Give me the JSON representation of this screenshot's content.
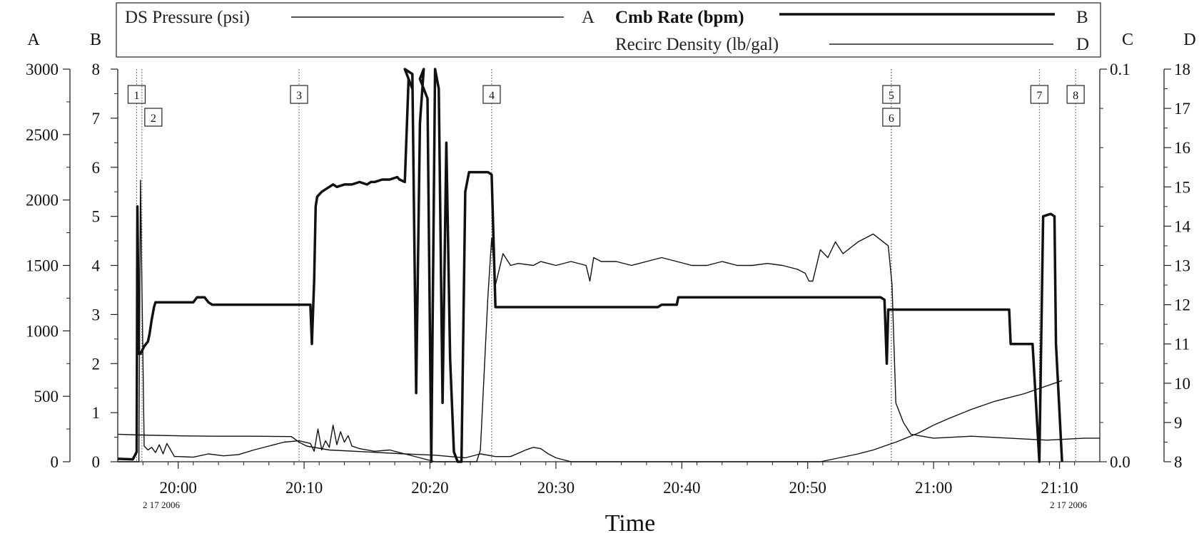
{
  "legend": {
    "pressure": {
      "name": "DS Pressure (psi)",
      "axis": "A"
    },
    "rate": {
      "name": "Cmb Rate (bpm)",
      "axis": "B"
    },
    "density": {
      "name": "Recirc Density (lb/gal)",
      "axis": "D"
    }
  },
  "axis_letters": {
    "a": "A",
    "b": "B",
    "c": "C",
    "d": "D"
  },
  "x_axis_title": "Time",
  "date_labels": [
    "2 17 2006",
    "2 17 2006"
  ],
  "chart_data": {
    "type": "line",
    "xlabel": "Time",
    "xlim": [
      19.92,
      21.22
    ],
    "x_ticks": [
      {
        "x": 20.0,
        "label": "20:00"
      },
      {
        "x": 20.1667,
        "label": "20:10"
      },
      {
        "x": 20.3333,
        "label": "20:20"
      },
      {
        "x": 20.5,
        "label": "20:30"
      },
      {
        "x": 20.6667,
        "label": "20:40"
      },
      {
        "x": 20.8333,
        "label": "20:50"
      },
      {
        "x": 21.0,
        "label": "21:00"
      },
      {
        "x": 21.1667,
        "label": "21:10"
      }
    ],
    "axes": {
      "A": {
        "range": [
          0,
          3000
        ],
        "ticks": [
          "0",
          "500",
          "1000",
          "1500",
          "2000",
          "2500",
          "3000"
        ]
      },
      "B": {
        "range": [
          0,
          8
        ],
        "ticks": [
          "0",
          "1",
          "2",
          "3",
          "4",
          "5",
          "6",
          "7",
          "8"
        ]
      },
      "C": {
        "range": [
          0.0,
          0.1
        ],
        "ticks": [
          "0.0",
          "0.1"
        ]
      },
      "D": {
        "range": [
          8,
          18
        ],
        "ticks": [
          "8",
          "9",
          "10",
          "11",
          "12",
          "13",
          "14",
          "15",
          "16",
          "17",
          "18"
        ]
      }
    },
    "markers": [
      {
        "label": "1",
        "x": 19.945,
        "row": 0
      },
      {
        "label": "2",
        "x": 19.952,
        "row": 1
      },
      {
        "label": "3",
        "x": 20.16,
        "row": 0
      },
      {
        "label": "4",
        "x": 20.415,
        "row": 0
      },
      {
        "label": "5",
        "x": 20.944,
        "row": 0
      },
      {
        "label": "6",
        "x": 20.944,
        "row": 1
      },
      {
        "label": "7",
        "x": 21.14,
        "row": 0
      },
      {
        "label": "8",
        "x": 21.188,
        "row": 0
      }
    ],
    "series": [
      {
        "name": "Cmb Rate (bpm)",
        "axis": "B",
        "stroke": 3.5,
        "x": [
          19.92,
          19.94,
          19.945,
          19.946,
          19.948,
          19.95,
          19.955,
          19.96,
          19.962,
          19.965,
          19.968,
          19.97,
          19.98,
          19.99,
          20.0,
          20.02,
          20.025,
          20.03,
          20.035,
          20.04,
          20.045,
          20.05,
          20.07,
          20.09,
          20.11,
          20.13,
          20.15,
          20.16,
          20.175,
          20.177,
          20.18,
          20.182,
          20.184,
          20.19,
          20.195,
          20.2,
          20.205,
          20.21,
          20.22,
          20.23,
          20.24,
          20.25,
          20.255,
          20.26,
          20.27,
          20.28,
          20.29,
          20.293,
          20.3,
          20.305,
          20.31,
          20.3,
          20.31,
          20.315,
          20.32,
          20.325,
          20.32,
          20.33,
          20.335,
          20.34,
          20.345,
          20.35,
          20.355,
          20.36,
          20.365,
          20.37,
          20.375,
          20.38,
          20.385,
          20.39,
          20.4,
          20.405,
          20.41,
          20.415,
          20.42,
          20.45,
          20.48,
          20.51,
          20.54,
          20.57,
          20.6,
          20.62,
          20.635,
          20.64,
          20.66,
          20.662,
          20.68,
          20.7,
          20.75,
          20.8,
          20.85,
          20.9,
          20.93,
          20.935,
          20.938,
          20.94,
          20.95,
          20.96,
          20.98,
          21.0,
          21.03,
          21.07,
          21.1,
          21.102,
          21.12,
          21.13,
          21.131,
          21.14,
          21.145,
          21.155,
          21.16,
          21.162,
          21.17
        ],
        "y": [
          0.06,
          0.05,
          0.2,
          5.2,
          2.2,
          2.2,
          2.35,
          2.45,
          2.6,
          2.9,
          3.15,
          3.25,
          3.25,
          3.25,
          3.25,
          3.25,
          3.35,
          3.35,
          3.35,
          3.25,
          3.2,
          3.2,
          3.2,
          3.2,
          3.2,
          3.2,
          3.2,
          3.2,
          3.2,
          2.4,
          3.7,
          5.2,
          5.4,
          5.5,
          5.55,
          5.6,
          5.65,
          5.6,
          5.65,
          5.65,
          5.7,
          5.65,
          5.7,
          5.7,
          5.75,
          5.75,
          5.8,
          5.75,
          5.7,
          7.8,
          7.6,
          8.1,
          7.9,
          1.4,
          6.9,
          8.1,
          7.8,
          7.4,
          0.0,
          8.1,
          7.6,
          1.2,
          6.5,
          2.1,
          0.2,
          0.0,
          0.0,
          5.5,
          5.9,
          5.9,
          5.9,
          5.9,
          5.9,
          5.85,
          3.15,
          3.15,
          3.15,
          3.15,
          3.15,
          3.15,
          3.15,
          3.15,
          3.15,
          3.2,
          3.2,
          3.35,
          3.35,
          3.35,
          3.35,
          3.35,
          3.35,
          3.35,
          3.35,
          3.3,
          2.0,
          3.1,
          3.1,
          3.1,
          3.1,
          3.1,
          3.1,
          3.1,
          3.1,
          2.4,
          2.4,
          2.4,
          2.4,
          0.0,
          5.0,
          5.05,
          5.0,
          2.4,
          0.0
        ]
      },
      {
        "name": "DS Pressure (psi)",
        "axis": "A",
        "stroke": 1.4,
        "x": [
          19.92,
          19.948,
          19.95,
          19.955,
          19.96,
          19.965,
          19.97,
          19.975,
          19.98,
          19.985,
          19.99,
          19.995,
          20.0,
          20.02,
          20.04,
          20.06,
          20.08,
          20.1,
          20.12,
          20.14,
          20.16,
          20.175,
          20.18,
          20.185,
          20.19,
          20.195,
          20.2,
          20.205,
          20.21,
          20.215,
          20.22,
          20.225,
          20.23,
          20.24,
          20.26,
          20.28,
          20.3,
          20.32,
          20.34,
          20.36,
          20.38,
          20.4,
          20.42,
          20.44,
          20.46,
          20.47,
          20.48,
          20.49,
          20.5,
          20.52,
          20.6,
          20.7,
          20.8,
          20.85,
          20.9,
          20.92,
          20.94,
          20.95,
          20.98,
          21.0,
          21.02,
          21.05,
          21.08,
          21.12,
          21.14,
          21.16,
          21.17
        ],
        "y": [
          0,
          0,
          2150,
          120,
          90,
          110,
          70,
          130,
          60,
          140,
          90,
          40,
          40,
          35,
          60,
          45,
          55,
          90,
          120,
          150,
          160,
          140,
          80,
          250,
          90,
          160,
          110,
          280,
          130,
          230,
          150,
          200,
          120,
          100,
          80,
          90,
          60,
          55,
          50,
          40,
          30,
          60,
          40,
          40,
          90,
          110,
          100,
          60,
          30,
          0,
          0,
          0,
          0,
          0,
          60,
          90,
          130,
          150,
          220,
          280,
          330,
          400,
          460,
          520,
          560,
          600,
          620
        ]
      },
      {
        "name": "Recirc Density (lb/gal)",
        "axis": "D",
        "stroke": 1.4,
        "x": [
          19.92,
          19.95,
          20.0,
          20.05,
          20.1,
          20.15,
          20.16,
          20.17,
          20.2,
          20.25,
          20.3,
          20.34,
          20.35,
          20.36,
          20.38,
          20.395,
          20.4,
          20.41,
          20.415,
          20.42,
          20.43,
          20.44,
          20.45,
          20.47,
          20.48,
          20.5,
          20.52,
          20.54,
          20.545,
          20.55,
          20.56,
          20.58,
          20.6,
          20.62,
          20.64,
          20.66,
          20.68,
          20.7,
          20.72,
          20.74,
          20.76,
          20.78,
          20.8,
          20.82,
          20.83,
          20.835,
          20.84,
          20.85,
          20.86,
          20.87,
          20.88,
          20.9,
          20.92,
          20.94,
          20.945,
          20.95,
          20.96,
          20.97,
          21.0,
          21.05,
          21.1,
          21.15,
          21.2,
          21.22
        ],
        "y": [
          8.7,
          8.68,
          8.66,
          8.65,
          8.65,
          8.64,
          8.5,
          8.4,
          8.3,
          8.25,
          8.2,
          8.0,
          8.0,
          8.0,
          8.0,
          8.0,
          8.3,
          12.2,
          13.7,
          12.5,
          13.3,
          13.0,
          13.05,
          13.0,
          13.1,
          13.0,
          13.1,
          13.0,
          12.6,
          13.2,
          13.1,
          13.1,
          13.0,
          13.1,
          13.2,
          13.1,
          13.0,
          13.0,
          13.1,
          13.0,
          13.0,
          13.05,
          13.0,
          12.9,
          12.8,
          12.6,
          12.6,
          13.4,
          13.2,
          13.6,
          13.3,
          13.6,
          13.8,
          13.5,
          12.5,
          9.5,
          9.0,
          8.7,
          8.6,
          8.65,
          8.6,
          8.55,
          8.6,
          8.6
        ]
      }
    ]
  }
}
